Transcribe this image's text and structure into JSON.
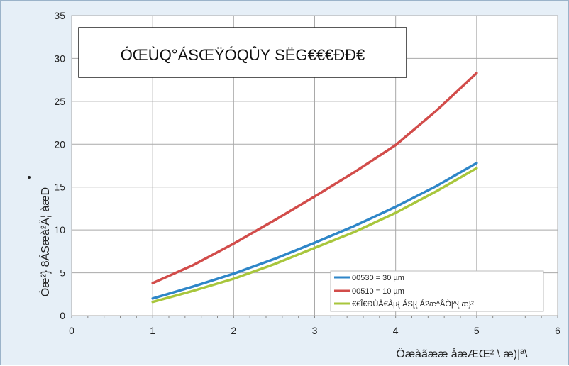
{
  "chart_data": {
    "type": "line",
    "title": "ÓŒÙQ°ÁSŒŸÓQÛY SËG€€€ÐÐ€",
    "xlabel": "Öæàãææ åæÆŒ² \\ æ)|ª\\",
    "ylabel": "Óæ²} 8ÁSæà²Ä¦ àæD",
    "xlim": [
      0,
      6
    ],
    "ylim": [
      0,
      35
    ],
    "x_ticks": [
      "0",
      "1",
      "2",
      "3",
      "4",
      "5",
      "6"
    ],
    "y_ticks": [
      "0",
      "5",
      "10",
      "15",
      "20",
      "25",
      "30",
      "35"
    ],
    "grid": true,
    "legend_position": "bottom-right",
    "colors": {
      "series_1": "#2e86c8",
      "series_2": "#d24c4a",
      "series_3": "#a8c63c"
    },
    "series": [
      {
        "name": "00530 = 30 µm",
        "x": [
          1,
          1.5,
          2,
          2.5,
          3,
          3.5,
          4,
          4.5,
          5
        ],
        "y": [
          2.0,
          3.4,
          4.9,
          6.6,
          8.5,
          10.5,
          12.7,
          15.1,
          17.8
        ]
      },
      {
        "name": "00510 = 10 µm",
        "x": [
          1,
          1.5,
          2,
          2.5,
          3,
          3.5,
          4,
          4.5,
          5
        ],
        "y": [
          3.8,
          5.9,
          8.4,
          11.1,
          13.9,
          16.8,
          19.9,
          23.9,
          28.3
        ]
      },
      {
        "name": "€€Î€ÐÙÅ€Åµ{ ÁS[{ Á2æ^ÂÒ|^{ æ}²",
        "x": [
          1,
          1.5,
          2,
          2.5,
          3,
          3.5,
          4,
          4.5,
          5
        ],
        "y": [
          1.6,
          2.9,
          4.3,
          6.0,
          7.9,
          9.8,
          12.0,
          14.5,
          17.2
        ]
      }
    ]
  }
}
